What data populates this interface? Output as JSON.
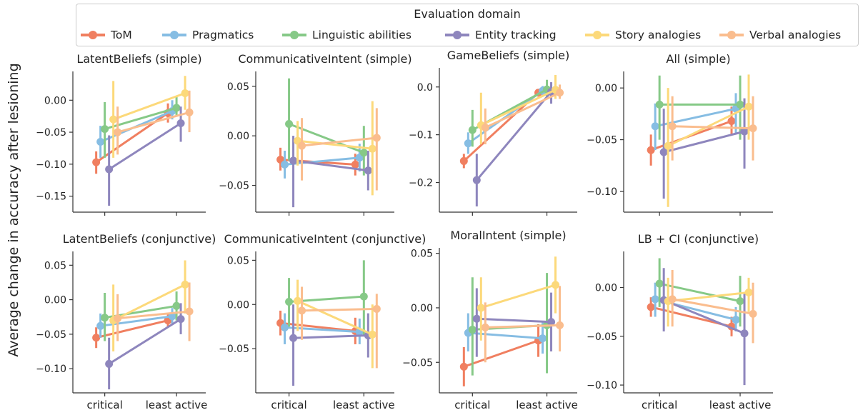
{
  "legend": {
    "title": "Evaluation domain",
    "items": [
      {
        "label": "ToM",
        "color": "#f07f60"
      },
      {
        "label": "Pragmatics",
        "color": "#86bde3"
      },
      {
        "label": "Linguistic abilities",
        "color": "#86c987"
      },
      {
        "label": "Entity tracking",
        "color": "#8e86bd"
      },
      {
        "label": "Story analogies",
        "color": "#fcd97a"
      },
      {
        "label": "Verbal analogies",
        "color": "#fabd8e"
      }
    ]
  },
  "ylabel": "Average change in accuracy after lesioning",
  "chart_data": [
    {
      "type": "line",
      "title": "LatentBeliefs (simple)",
      "categories": [
        "critical",
        "least active"
      ],
      "ylim": [
        -0.175,
        0.045
      ],
      "yticks": [
        0.0,
        -0.05,
        -0.1,
        -0.15
      ],
      "ytick_labels": [
        "0.00",
        "−0.05",
        "−0.10",
        "−0.15"
      ],
      "series": [
        {
          "name": "ToM",
          "values": [
            -0.097,
            -0.02
          ],
          "err_low": [
            -0.115,
            -0.035
          ],
          "err_high": [
            -0.08,
            -0.005
          ]
        },
        {
          "name": "Pragmatics",
          "values": [
            -0.065,
            -0.017
          ],
          "err_low": [
            -0.09,
            -0.03
          ],
          "err_high": [
            -0.04,
            0.0
          ]
        },
        {
          "name": "Linguistic abilities",
          "values": [
            -0.045,
            -0.012
          ],
          "err_low": [
            -0.09,
            -0.025
          ],
          "err_high": [
            -0.003,
            0.005
          ]
        },
        {
          "name": "Entity tracking",
          "values": [
            -0.108,
            -0.036
          ],
          "err_low": [
            -0.165,
            -0.065
          ],
          "err_high": [
            -0.055,
            -0.01
          ]
        },
        {
          "name": "Story analogies",
          "values": [
            -0.03,
            0.011
          ],
          "err_low": [
            -0.09,
            -0.015
          ],
          "err_high": [
            0.03,
            0.038
          ]
        },
        {
          "name": "Verbal analogies",
          "values": [
            -0.05,
            -0.019
          ],
          "err_low": [
            -0.085,
            -0.05
          ],
          "err_high": [
            -0.01,
            0.015
          ]
        }
      ]
    },
    {
      "type": "line",
      "title": "CommunicativeIntent (simple)",
      "categories": [
        "critical",
        "least active"
      ],
      "ylim": [
        -0.077,
        0.065
      ],
      "yticks": [
        0.05,
        0.0,
        -0.05
      ],
      "ytick_labels": [
        "0.05",
        "0.00",
        "−0.05"
      ],
      "series": [
        {
          "name": "ToM",
          "values": [
            -0.024,
            -0.029
          ],
          "err_low": [
            -0.035,
            -0.04
          ],
          "err_high": [
            -0.012,
            -0.018
          ]
        },
        {
          "name": "Pragmatics",
          "values": [
            -0.029,
            -0.022
          ],
          "err_low": [
            -0.043,
            -0.036
          ],
          "err_high": [
            -0.015,
            -0.008
          ]
        },
        {
          "name": "Linguistic abilities",
          "values": [
            0.012,
            -0.017
          ],
          "err_low": [
            -0.025,
            -0.04
          ],
          "err_high": [
            0.058,
            0.01
          ]
        },
        {
          "name": "Entity tracking",
          "values": [
            -0.025,
            -0.035
          ],
          "err_low": [
            -0.072,
            -0.055
          ],
          "err_high": [
            0.0,
            -0.015
          ]
        },
        {
          "name": "Story analogies",
          "values": [
            -0.005,
            -0.013
          ],
          "err_low": [
            -0.03,
            -0.06
          ],
          "err_high": [
            0.015,
            0.035
          ]
        },
        {
          "name": "Verbal analogies",
          "values": [
            -0.01,
            -0.002
          ],
          "err_low": [
            -0.045,
            -0.055
          ],
          "err_high": [
            0.018,
            0.028
          ]
        }
      ]
    },
    {
      "type": "line",
      "title": "GameBeliefs (simple)",
      "categories": [
        "critical",
        "least active"
      ],
      "ylim": [
        -0.262,
        0.04
      ],
      "yticks": [
        0.0,
        -0.1,
        -0.2
      ],
      "ytick_labels": [
        "0.0",
        "−0.1",
        "−0.2"
      ],
      "series": [
        {
          "name": "ToM",
          "values": [
            -0.155,
            -0.012
          ],
          "err_low": [
            -0.17,
            -0.02
          ],
          "err_high": [
            -0.14,
            -0.005
          ]
        },
        {
          "name": "Pragmatics",
          "values": [
            -0.118,
            -0.008
          ],
          "err_low": [
            -0.14,
            -0.018
          ],
          "err_high": [
            -0.095,
            0.002
          ]
        },
        {
          "name": "Linguistic abilities",
          "values": [
            -0.09,
            -0.005
          ],
          "err_low": [
            -0.125,
            -0.02
          ],
          "err_high": [
            -0.048,
            0.015
          ]
        },
        {
          "name": "Entity tracking",
          "values": [
            -0.195,
            -0.01
          ],
          "err_low": [
            -0.25,
            -0.035
          ],
          "err_high": [
            -0.14,
            0.01
          ]
        },
        {
          "name": "Story analogies",
          "values": [
            -0.08,
            -0.006
          ],
          "err_low": [
            -0.12,
            -0.025
          ],
          "err_high": [
            -0.012,
            0.025
          ]
        },
        {
          "name": "Verbal analogies",
          "values": [
            -0.085,
            -0.012
          ],
          "err_low": [
            -0.12,
            -0.025
          ],
          "err_high": [
            -0.045,
            0.005
          ]
        }
      ]
    },
    {
      "type": "line",
      "title": "All (simple)",
      "categories": [
        "critical",
        "least active"
      ],
      "ylim": [
        -0.12,
        0.016
      ],
      "yticks": [
        0.0,
        -0.05,
        -0.1
      ],
      "ytick_labels": [
        "0.00",
        "−0.05",
        "−0.10"
      ],
      "series": [
        {
          "name": "ToM",
          "values": [
            -0.06,
            -0.032
          ],
          "err_low": [
            -0.075,
            -0.045
          ],
          "err_high": [
            -0.045,
            -0.018
          ]
        },
        {
          "name": "Pragmatics",
          "values": [
            -0.037,
            -0.02
          ],
          "err_low": [
            -0.06,
            -0.045
          ],
          "err_high": [
            -0.015,
            -0.005
          ]
        },
        {
          "name": "Linguistic abilities",
          "values": [
            -0.016,
            -0.016
          ],
          "err_low": [
            -0.05,
            -0.05
          ],
          "err_high": [
            0.012,
            0.012
          ]
        },
        {
          "name": "Entity tracking",
          "values": [
            -0.062,
            -0.042
          ],
          "err_low": [
            -0.107,
            -0.078
          ],
          "err_high": [
            -0.02,
            -0.01
          ]
        },
        {
          "name": "Story analogies",
          "values": [
            -0.056,
            -0.018
          ],
          "err_low": [
            -0.115,
            -0.05
          ],
          "err_high": [
            0.0,
            0.013
          ]
        },
        {
          "name": "Verbal analogies",
          "values": [
            -0.037,
            -0.039
          ],
          "err_low": [
            -0.07,
            -0.07
          ],
          "err_high": [
            -0.008,
            -0.008
          ]
        }
      ]
    },
    {
      "type": "line",
      "title": "LatentBeliefs (conjunctive)",
      "categories": [
        "critical",
        "least active"
      ],
      "ylim": [
        -0.135,
        0.07
      ],
      "yticks": [
        0.05,
        0.0,
        -0.05,
        -0.1
      ],
      "ytick_labels": [
        "0.05",
        "0.00",
        "−0.05",
        "−0.10"
      ],
      "series": [
        {
          "name": "ToM",
          "values": [
            -0.055,
            -0.03
          ],
          "err_low": [
            -0.07,
            -0.04
          ],
          "err_high": [
            -0.04,
            -0.02
          ]
        },
        {
          "name": "Pragmatics",
          "values": [
            -0.038,
            -0.024
          ],
          "err_low": [
            -0.055,
            -0.035
          ],
          "err_high": [
            -0.02,
            -0.012
          ]
        },
        {
          "name": "Linguistic abilities",
          "values": [
            -0.026,
            -0.009
          ],
          "err_low": [
            -0.06,
            -0.03
          ],
          "err_high": [
            0.01,
            0.012
          ]
        },
        {
          "name": "Entity tracking",
          "values": [
            -0.093,
            -0.028
          ],
          "err_low": [
            -0.13,
            -0.05
          ],
          "err_high": [
            -0.055,
            -0.005
          ]
        },
        {
          "name": "Story analogies",
          "values": [
            -0.03,
            0.022
          ],
          "err_low": [
            -0.075,
            -0.02
          ],
          "err_high": [
            0.022,
            0.057
          ]
        },
        {
          "name": "Verbal analogies",
          "values": [
            -0.027,
            -0.017
          ],
          "err_low": [
            -0.06,
            -0.06
          ],
          "err_high": [
            0.008,
            0.025
          ]
        }
      ]
    },
    {
      "type": "line",
      "title": "CommunicativeIntent (conjunctive)",
      "categories": [
        "critical",
        "least active"
      ],
      "ylim": [
        -0.1,
        0.06
      ],
      "yticks": [
        0.05,
        0.0,
        -0.05
      ],
      "ytick_labels": [
        "0.05",
        "0.00",
        "−0.05"
      ],
      "series": [
        {
          "name": "ToM",
          "values": [
            -0.021,
            -0.03
          ],
          "err_low": [
            -0.035,
            -0.045
          ],
          "err_high": [
            -0.007,
            -0.015
          ]
        },
        {
          "name": "Pragmatics",
          "values": [
            -0.026,
            -0.031
          ],
          "err_low": [
            -0.045,
            -0.045
          ],
          "err_high": [
            -0.01,
            -0.016
          ]
        },
        {
          "name": "Linguistic abilities",
          "values": [
            0.003,
            0.009
          ],
          "err_low": [
            -0.025,
            -0.035
          ],
          "err_high": [
            0.03,
            0.05
          ]
        },
        {
          "name": "Entity tracking",
          "values": [
            -0.038,
            -0.035
          ],
          "err_low": [
            -0.092,
            -0.06
          ],
          "err_high": [
            0.0,
            -0.01
          ]
        },
        {
          "name": "Story analogies",
          "values": [
            0.004,
            -0.034
          ],
          "err_low": [
            -0.03,
            -0.072
          ],
          "err_high": [
            0.028,
            0.0
          ]
        },
        {
          "name": "Verbal analogies",
          "values": [
            -0.007,
            -0.005
          ],
          "err_low": [
            -0.04,
            -0.072
          ],
          "err_high": [
            0.02,
            0.012
          ]
        }
      ]
    },
    {
      "type": "line",
      "title": "MoralIntent (simple)",
      "categories": [
        "critical",
        "least active"
      ],
      "ylim": [
        -0.078,
        0.055
      ],
      "yticks": [
        0.05,
        0.0,
        -0.05
      ],
      "ytick_labels": [
        "0.05",
        "0.00",
        "−0.05"
      ],
      "series": [
        {
          "name": "ToM",
          "values": [
            -0.054,
            -0.03
          ],
          "err_low": [
            -0.072,
            -0.045
          ],
          "err_high": [
            -0.036,
            -0.015
          ]
        },
        {
          "name": "Pragmatics",
          "values": [
            -0.023,
            -0.028
          ],
          "err_low": [
            -0.04,
            -0.042
          ],
          "err_high": [
            -0.005,
            -0.012
          ]
        },
        {
          "name": "Linguistic abilities",
          "values": [
            -0.02,
            -0.016
          ],
          "err_low": [
            -0.062,
            -0.06
          ],
          "err_high": [
            0.028,
            0.032
          ]
        },
        {
          "name": "Entity tracking",
          "values": [
            -0.01,
            -0.013
          ],
          "err_low": [
            -0.045,
            -0.04
          ],
          "err_high": [
            0.018,
            0.014
          ]
        },
        {
          "name": "Story analogies",
          "values": [
            0.0,
            0.021
          ],
          "err_low": [
            -0.03,
            -0.005
          ],
          "err_high": [
            0.028,
            0.047
          ]
        },
        {
          "name": "Verbal analogies",
          "values": [
            -0.018,
            -0.016
          ],
          "err_low": [
            -0.05,
            -0.04
          ],
          "err_high": [
            0.005,
            0.02
          ]
        }
      ]
    },
    {
      "type": "line",
      "title": "LB + CI (conjunctive)",
      "categories": [
        "critical",
        "least active"
      ],
      "ylim": [
        -0.108,
        0.037
      ],
      "yticks": [
        0.0,
        -0.05,
        -0.1
      ],
      "ytick_labels": [
        "0.00",
        "−0.05",
        "−0.10"
      ],
      "series": [
        {
          "name": "ToM",
          "values": [
            -0.02,
            -0.04
          ],
          "err_low": [
            -0.03,
            -0.05
          ],
          "err_high": [
            -0.01,
            -0.03
          ]
        },
        {
          "name": "Pragmatics",
          "values": [
            -0.012,
            -0.033
          ],
          "err_low": [
            -0.03,
            -0.045
          ],
          "err_high": [
            0.005,
            -0.02
          ]
        },
        {
          "name": "Linguistic abilities",
          "values": [
            0.004,
            -0.014
          ],
          "err_low": [
            -0.02,
            -0.04
          ],
          "err_high": [
            0.03,
            0.012
          ]
        },
        {
          "name": "Entity tracking",
          "values": [
            -0.013,
            -0.047
          ],
          "err_low": [
            -0.045,
            -0.1
          ],
          "err_high": [
            0.02,
            -0.005
          ]
        },
        {
          "name": "Story analogies",
          "values": [
            -0.014,
            -0.005
          ],
          "err_low": [
            -0.04,
            -0.025
          ],
          "err_high": [
            0.01,
            0.01
          ]
        },
        {
          "name": "Verbal analogies",
          "values": [
            -0.012,
            -0.027
          ],
          "err_low": [
            -0.04,
            -0.057
          ],
          "err_high": [
            0.018,
            0.005
          ]
        }
      ]
    }
  ]
}
